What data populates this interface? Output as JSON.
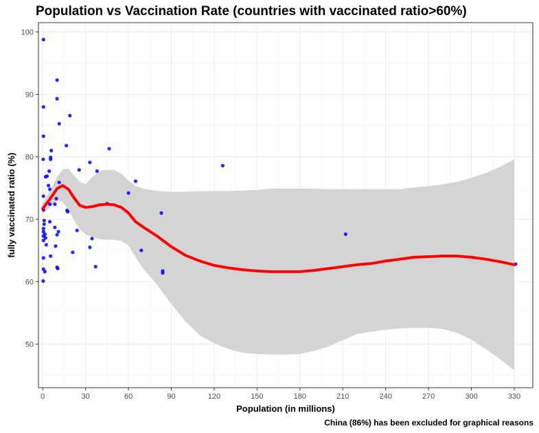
{
  "chart_data": {
    "type": "scatter",
    "title": "Population vs Vaccination Rate  (countries with vaccinated ratio>60%)",
    "xlabel": "Population (in millions)",
    "ylabel": "fully vaccinated ratio (%)",
    "caption": "China (86%) has been excluded for graphical reasons",
    "xlim": [
      -3,
      343
    ],
    "ylim": [
      43,
      101.5
    ],
    "xticks": [
      0,
      30,
      60,
      90,
      120,
      150,
      180,
      210,
      240,
      270,
      300,
      330
    ],
    "yticks": [
      50,
      60,
      70,
      80,
      90,
      100
    ],
    "grid": true,
    "legend": "none",
    "point_color": "#0000ff",
    "smooth_color": "#ff0000",
    "band_color": "#d4d4d4",
    "points": [
      {
        "x": 0.5,
        "y": 98.8
      },
      {
        "x": 10,
        "y": 92.3
      },
      {
        "x": 10,
        "y": 89.3
      },
      {
        "x": 0.5,
        "y": 88.0
      },
      {
        "x": 19,
        "y": 86.6
      },
      {
        "x": 11.5,
        "y": 85.3
      },
      {
        "x": 0.5,
        "y": 83.3
      },
      {
        "x": 16.5,
        "y": 81.8
      },
      {
        "x": 46.5,
        "y": 81.3
      },
      {
        "x": 6,
        "y": 81.0
      },
      {
        "x": 5.5,
        "y": 79.9
      },
      {
        "x": 0.3,
        "y": 79.6
      },
      {
        "x": 5.5,
        "y": 79.6
      },
      {
        "x": 33,
        "y": 79.1
      },
      {
        "x": 126,
        "y": 78.6
      },
      {
        "x": 25.5,
        "y": 77.9
      },
      {
        "x": 38,
        "y": 77.7
      },
      {
        "x": 4.5,
        "y": 77.7
      },
      {
        "x": 3,
        "y": 76.9
      },
      {
        "x": 2,
        "y": 76.8
      },
      {
        "x": 65,
        "y": 76.1
      },
      {
        "x": 11.5,
        "y": 75.9
      },
      {
        "x": 4,
        "y": 75.4
      },
      {
        "x": 5,
        "y": 74.8
      },
      {
        "x": 60,
        "y": 74.2
      },
      {
        "x": 0.5,
        "y": 73.7
      },
      {
        "x": 9.5,
        "y": 73.3
      },
      {
        "x": 45,
        "y": 72.5
      },
      {
        "x": 5,
        "y": 72.4
      },
      {
        "x": 8.5,
        "y": 72.4
      },
      {
        "x": 0.5,
        "y": 71.5
      },
      {
        "x": 17,
        "y": 71.4
      },
      {
        "x": 17.5,
        "y": 71.2
      },
      {
        "x": 83,
        "y": 71.0
      },
      {
        "x": 1,
        "y": 69.8
      },
      {
        "x": 5,
        "y": 69.6
      },
      {
        "x": 1,
        "y": 69.2
      },
      {
        "x": 0.5,
        "y": 68.5
      },
      {
        "x": 8.5,
        "y": 68.7
      },
      {
        "x": 0.5,
        "y": 68.0
      },
      {
        "x": 24,
        "y": 68.2
      },
      {
        "x": 11,
        "y": 68.0
      },
      {
        "x": 1.5,
        "y": 67.6
      },
      {
        "x": 10,
        "y": 67.5
      },
      {
        "x": 0.5,
        "y": 67.3
      },
      {
        "x": 2,
        "y": 67.0
      },
      {
        "x": 0.5,
        "y": 66.6
      },
      {
        "x": 212,
        "y": 67.6
      },
      {
        "x": 2.5,
        "y": 65.9
      },
      {
        "x": 33,
        "y": 65.5
      },
      {
        "x": 9,
        "y": 65.7
      },
      {
        "x": 69,
        "y": 65.0
      },
      {
        "x": 21,
        "y": 64.7
      },
      {
        "x": 5.5,
        "y": 64.1
      },
      {
        "x": 0.5,
        "y": 63.8
      },
      {
        "x": 34.5,
        "y": 66.9
      },
      {
        "x": 37,
        "y": 62.4
      },
      {
        "x": 10,
        "y": 62.3
      },
      {
        "x": 10.5,
        "y": 62.1
      },
      {
        "x": 0.5,
        "y": 62.0
      },
      {
        "x": 1.5,
        "y": 61.6
      },
      {
        "x": 84,
        "y": 61.7
      },
      {
        "x": 84,
        "y": 61.4
      },
      {
        "x": 0.3,
        "y": 60.1
      },
      {
        "x": 331,
        "y": 62.8
      }
    ],
    "smooth_line": {
      "x": [
        0,
        5,
        10,
        14,
        18,
        22,
        26,
        30,
        34,
        40,
        45,
        50,
        55,
        60,
        65,
        70,
        80,
        90,
        100,
        110,
        120,
        130,
        140,
        150,
        160,
        170,
        180,
        190,
        200,
        210,
        220,
        230,
        240,
        250,
        260,
        270,
        280,
        290,
        300,
        310,
        320,
        330
      ],
      "y": [
        71.7,
        73.2,
        74.9,
        75.4,
        74.8,
        73.4,
        72.2,
        71.9,
        72.0,
        72.3,
        72.4,
        72.3,
        71.9,
        71.0,
        69.6,
        68.8,
        67.3,
        65.6,
        64.2,
        63.3,
        62.6,
        62.2,
        61.9,
        61.7,
        61.6,
        61.6,
        61.6,
        61.8,
        62.1,
        62.4,
        62.7,
        62.9,
        63.3,
        63.6,
        63.9,
        64.0,
        64.1,
        64.1,
        63.9,
        63.6,
        63.2,
        62.7
      ]
    },
    "confidence_band": {
      "upper": [
        72.6,
        74.5,
        76.8,
        78.0,
        78.1,
        77.0,
        76.0,
        75.6,
        76.6,
        77.8,
        77.9,
        77.9,
        77.3,
        76.2,
        75.3,
        74.9,
        74.5,
        74.4,
        74.4,
        74.5,
        74.5,
        74.5,
        74.6,
        74.7,
        74.9,
        74.9,
        74.9,
        74.9,
        74.8,
        74.8,
        74.8,
        74.8,
        74.8,
        74.8,
        75.1,
        75.3,
        75.6,
        76.0,
        76.6,
        77.4,
        78.4,
        79.6
      ],
      "lower": [
        70.8,
        71.9,
        73.0,
        72.8,
        71.5,
        69.8,
        68.4,
        67.6,
        67.2,
        66.8,
        66.7,
        66.7,
        66.5,
        65.8,
        63.9,
        62.2,
        59.5,
        56.4,
        53.6,
        51.4,
        50.1,
        49.2,
        48.6,
        48.4,
        48.3,
        48.3,
        48.4,
        48.9,
        49.6,
        50.6,
        51.6,
        52.0,
        52.3,
        52.5,
        52.6,
        52.6,
        52.4,
        51.8,
        50.7,
        49.2,
        47.6,
        45.8
      ]
    }
  }
}
